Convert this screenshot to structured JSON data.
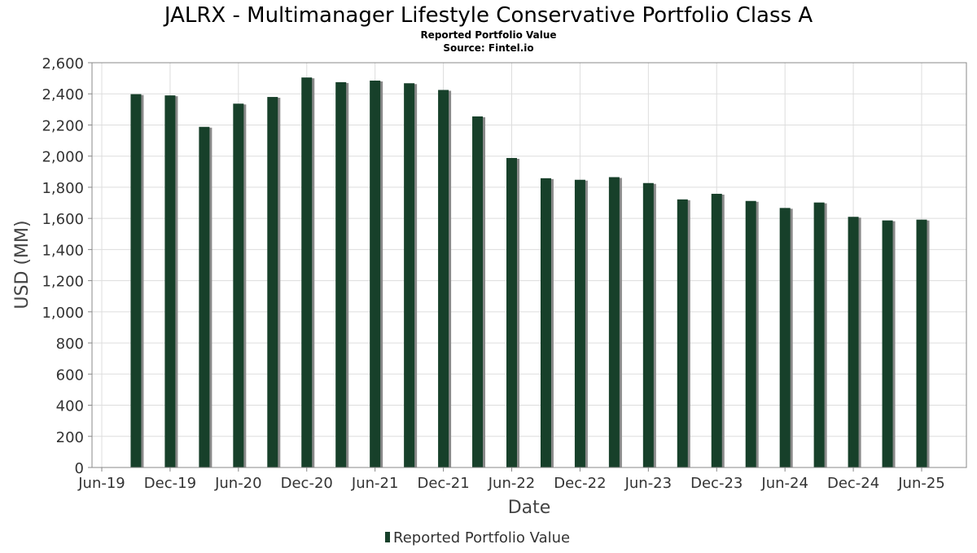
{
  "chart_data": {
    "type": "bar",
    "title": "JALRX - Multimanager Lifestyle Conservative Portfolio Class A",
    "subtitle_lines": [
      "Reported Portfolio Value",
      "Source: Fintel.io"
    ],
    "xlabel": "Date",
    "ylabel": "USD (MM)",
    "ylim": [
      0,
      2600
    ],
    "yticks": [
      0,
      200,
      400,
      600,
      800,
      1000,
      1200,
      1400,
      1600,
      1800,
      2000,
      2200,
      2400,
      2600
    ],
    "ytick_labels": [
      "0",
      "200",
      "400",
      "600",
      "800",
      "1,000",
      "1,200",
      "1,400",
      "1,600",
      "1,800",
      "2,000",
      "2,200",
      "2,400",
      "2,600"
    ],
    "xticks": [
      "Jun-19",
      "Dec-19",
      "Jun-20",
      "Dec-20",
      "Jun-21",
      "Dec-21",
      "Jun-22",
      "Dec-22",
      "Jun-23",
      "Dec-23",
      "Jun-24",
      "Dec-24",
      "Jun-25"
    ],
    "grid": true,
    "legend_position": "bottom-center",
    "series": [
      {
        "name": "Reported Portfolio Value",
        "color": "#17402a",
        "x": [
          "2019-09",
          "2019-12",
          "2020-03",
          "2020-06",
          "2020-09",
          "2020-12",
          "2021-03",
          "2021-06",
          "2021-09",
          "2021-12",
          "2022-03",
          "2022-06",
          "2022-09",
          "2022-12",
          "2023-03",
          "2023-06",
          "2023-09",
          "2023-12",
          "2024-03",
          "2024-06",
          "2024-09",
          "2024-12",
          "2025-03",
          "2025-06"
        ],
        "values": [
          2398,
          2390,
          2188,
          2337,
          2380,
          2505,
          2475,
          2485,
          2468,
          2425,
          2255,
          1988,
          1858,
          1848,
          1865,
          1827,
          1722,
          1758,
          1712,
          1667,
          1702,
          1610,
          1587,
          1592
        ]
      }
    ]
  }
}
